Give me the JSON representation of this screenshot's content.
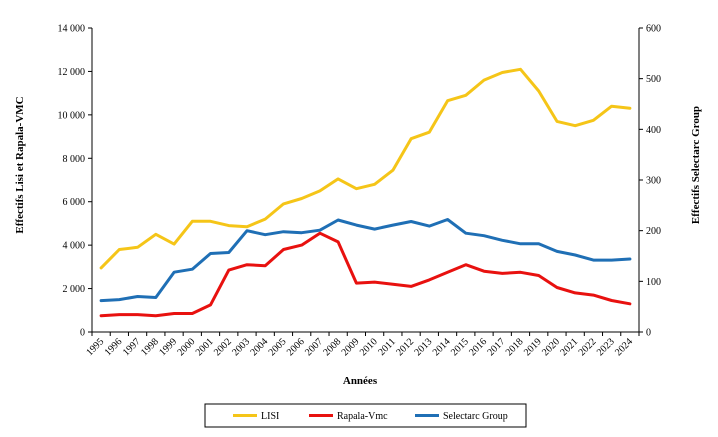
{
  "chart_data": {
    "type": "line",
    "title": "",
    "xlabel": "Années",
    "ylabel_left": "Effectifs Lisi et Rapala-VMC",
    "ylabel_right": "Effectifs Selectarc Group",
    "ylim_left": [
      0,
      14000
    ],
    "ylim_right": [
      0,
      600
    ],
    "yticks_left": [
      "0",
      "2 000",
      "4 000",
      "6 000",
      "8 000",
      "10 000",
      "12 000",
      "14 000"
    ],
    "yticks_right": [
      "0",
      "100",
      "200",
      "300",
      "400",
      "500",
      "600"
    ],
    "categories": [
      "1995",
      "1996",
      "1997",
      "1998",
      "1999",
      "2000",
      "2001",
      "2002",
      "2003",
      "2004",
      "2005",
      "2006",
      "2007",
      "2008",
      "2009",
      "2010",
      "2011",
      "2012",
      "2013",
      "2014",
      "2015",
      "2016",
      "2017",
      "2018",
      "2019",
      "2020",
      "2021",
      "2022",
      "2023",
      "2024"
    ],
    "grid": false,
    "legend_position": "bottom",
    "series": [
      {
        "name": "LISI",
        "axis": "left",
        "color": "#f5c518",
        "values": [
          2950,
          3800,
          3900,
          4500,
          4050,
          5100,
          5100,
          4900,
          4850,
          5200,
          5900,
          6150,
          6500,
          7050,
          6600,
          6800,
          7450,
          8900,
          9200,
          10650,
          10900,
          11600,
          11950,
          12100,
          11100,
          9700,
          9500,
          9750,
          10400,
          10300
        ]
      },
      {
        "name": "Rapala-Vmc",
        "axis": "left",
        "color": "#e8110f",
        "values": [
          750,
          800,
          800,
          750,
          850,
          850,
          1250,
          2850,
          3100,
          3050,
          3800,
          4000,
          4550,
          4150,
          2250,
          2300,
          2200,
          2100,
          2400,
          2750,
          3100,
          2800,
          2700,
          2750,
          2600,
          2050,
          1800,
          1700,
          1450,
          1300
        ]
      },
      {
        "name": "Selectarc Group",
        "axis": "right",
        "color": "#1f6fb5",
        "values": [
          62,
          64,
          70,
          68,
          118,
          124,
          155,
          157,
          200,
          192,
          198,
          196,
          201,
          221,
          211,
          203,
          211,
          218,
          209,
          222,
          195,
          190,
          181,
          174,
          174,
          159,
          152,
          142,
          142,
          144
        ]
      }
    ]
  }
}
